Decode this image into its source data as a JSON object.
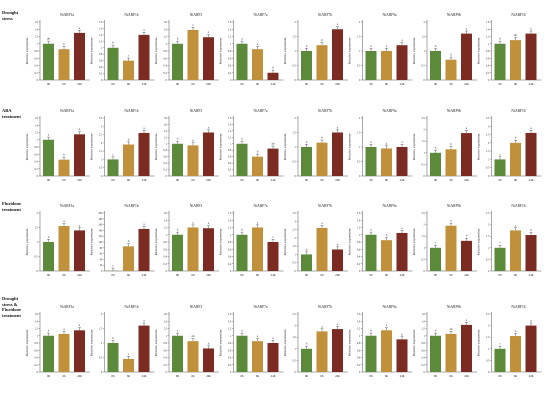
{
  "colors": {
    "0h": "#5a8a3a",
    "6h": "#c0913a",
    "24h": "#7b2b22",
    "axis": "#555555",
    "error_bar": "#333333"
  },
  "labels": {
    "ylabel": "Relative expression",
    "x_categories": [
      "0h",
      "6h",
      "24h"
    ]
  },
  "treatments": [
    {
      "title": "Drought\nstress"
    },
    {
      "title": "ABA\ntreatment"
    },
    {
      "title": "Fluridone\ntreatment"
    },
    {
      "title": "Drought\nstress &\nFluridone\ntreatment"
    }
  ],
  "chart_data": [
    {
      "type": "bar",
      "row": 0,
      "title": "NtARF1a",
      "categories": [
        "0h",
        "6h",
        "24h"
      ],
      "values": [
        1.0,
        0.85,
        1.3
      ],
      "letters": [
        "ab",
        "b",
        "a"
      ],
      "ylim": [
        0,
        1.6
      ],
      "yticks": [
        0,
        0.2,
        0.4,
        0.6,
        0.8,
        1.0,
        1.2,
        1.4,
        1.6
      ]
    },
    {
      "type": "bar",
      "row": 0,
      "title": "NtARF1b",
      "categories": [
        "0h",
        "6h",
        "24h"
      ],
      "values": [
        1.0,
        0.6,
        1.4
      ],
      "letters": [
        "b",
        "c",
        "a"
      ],
      "ylim": [
        0,
        1.8
      ],
      "yticks": [
        0,
        0.2,
        0.4,
        0.6,
        0.8,
        1.0,
        1.2,
        1.4,
        1.6,
        1.8
      ]
    },
    {
      "type": "bar",
      "row": 0,
      "title": "NtARF3",
      "categories": [
        "0h",
        "6h",
        "24h"
      ],
      "values": [
        1.0,
        1.38,
        1.18
      ],
      "letters": [
        "b",
        "a",
        "a"
      ],
      "ylim": [
        0,
        1.6
      ],
      "yticks": [
        0,
        0.2,
        0.4,
        0.6,
        0.8,
        1.0,
        1.2,
        1.4,
        1.6
      ]
    },
    {
      "type": "bar",
      "row": 0,
      "title": "NtARF7a",
      "categories": [
        "0h",
        "6h",
        "24h"
      ],
      "values": [
        1.0,
        0.85,
        0.2
      ],
      "letters": [
        "a",
        "a",
        "b"
      ],
      "ylim": [
        0,
        1.6
      ],
      "yticks": [
        0,
        0.2,
        0.4,
        0.6,
        0.8,
        1.0,
        1.2,
        1.4,
        1.6
      ]
    },
    {
      "type": "bar",
      "row": 0,
      "title": "NtARF7b",
      "categories": [
        "0h",
        "6h",
        "24h"
      ],
      "values": [
        1.0,
        1.2,
        1.75
      ],
      "letters": [
        "b",
        "b",
        "a"
      ],
      "ylim": [
        0,
        2.0
      ],
      "yticks": [
        0,
        0.5,
        1.0,
        1.5,
        2.0
      ]
    },
    {
      "type": "bar",
      "row": 0,
      "title": "NtARF9a",
      "categories": [
        "0h",
        "6h",
        "24h"
      ],
      "values": [
        1.0,
        1.0,
        1.2
      ],
      "letters": [
        "a",
        "a",
        "a"
      ],
      "ylim": [
        0,
        2.0
      ],
      "yticks": [
        0,
        0.5,
        1.0,
        1.5,
        2.0
      ]
    },
    {
      "type": "bar",
      "row": 0,
      "title": "NtARF9b",
      "categories": [
        "0h",
        "6h",
        "24h"
      ],
      "values": [
        1.0,
        0.7,
        1.6
      ],
      "letters": [
        "b",
        "b",
        "a"
      ],
      "ylim": [
        0,
        2.0
      ],
      "yticks": [
        0,
        0.5,
        1.0,
        1.5,
        2.0
      ]
    },
    {
      "type": "bar",
      "row": 0,
      "title": "NtARF16",
      "categories": [
        "0h",
        "6h",
        "24h"
      ],
      "values": [
        1.0,
        1.1,
        1.28
      ],
      "letters": [
        "b",
        "ab",
        "a"
      ],
      "ylim": [
        0,
        1.6
      ],
      "yticks": [
        0,
        0.2,
        0.4,
        0.6,
        0.8,
        1.0,
        1.2,
        1.4,
        1.6
      ]
    },
    {
      "type": "bar",
      "row": 1,
      "title": "NtARF1a",
      "categories": [
        "0h",
        "6h",
        "24h"
      ],
      "values": [
        1.0,
        0.45,
        1.15
      ],
      "letters": [
        "a",
        "b",
        "a"
      ],
      "ylim": [
        0,
        1.6
      ],
      "yticks": [
        0,
        0.2,
        0.4,
        0.6,
        0.8,
        1.0,
        1.2,
        1.4,
        1.6
      ]
    },
    {
      "type": "bar",
      "row": 1,
      "title": "NtARF1b",
      "categories": [
        "0h",
        "6h",
        "24h"
      ],
      "values": [
        1.0,
        1.9,
        2.6
      ],
      "letters": [
        "c",
        "b",
        "a"
      ],
      "ylim": [
        0,
        3.5
      ],
      "yticks": [
        0,
        0.5,
        1.0,
        1.5,
        2.0,
        2.5,
        3.0,
        3.5
      ]
    },
    {
      "type": "bar",
      "row": 1,
      "title": "NtARF3",
      "categories": [
        "0h",
        "6h",
        "24h"
      ],
      "values": [
        1.0,
        0.95,
        1.35
      ],
      "letters": [
        "b",
        "b",
        "a"
      ],
      "ylim": [
        0,
        1.8
      ],
      "yticks": [
        0,
        0.2,
        0.4,
        0.6,
        0.8,
        1.0,
        1.2,
        1.4,
        1.6,
        1.8
      ]
    },
    {
      "type": "bar",
      "row": 1,
      "title": "NtARF7a",
      "categories": [
        "0h",
        "6h",
        "24h"
      ],
      "values": [
        1.0,
        0.6,
        0.85
      ],
      "letters": [
        "a",
        "b",
        "ab"
      ],
      "ylim": [
        0,
        1.8
      ],
      "yticks": [
        0,
        0.2,
        0.4,
        0.6,
        0.8,
        1.0,
        1.2,
        1.4,
        1.6,
        1.8
      ]
    },
    {
      "type": "bar",
      "row": 1,
      "title": "NtARF7b",
      "categories": [
        "0h",
        "6h",
        "24h"
      ],
      "values": [
        1.0,
        1.15,
        1.5
      ],
      "letters": [
        "b",
        "b",
        "a"
      ],
      "ylim": [
        0,
        2.0
      ],
      "yticks": [
        0,
        0.5,
        1.0,
        1.5,
        2.0
      ]
    },
    {
      "type": "bar",
      "row": 1,
      "title": "NtARF9a",
      "categories": [
        "0h",
        "6h",
        "24h"
      ],
      "values": [
        1.0,
        0.95,
        1.0
      ],
      "letters": [
        "a",
        "a",
        "a"
      ],
      "ylim": [
        0,
        2.0
      ],
      "yticks": [
        0,
        0.5,
        1.0,
        1.5,
        2.0
      ]
    },
    {
      "type": "bar",
      "row": 1,
      "title": "NtARF9b",
      "categories": [
        "0h",
        "6h",
        "24h"
      ],
      "values": [
        1.0,
        1.15,
        1.85
      ],
      "letters": [
        "b",
        "b",
        "a"
      ],
      "ylim": [
        0,
        2.5
      ],
      "yticks": [
        0,
        0.5,
        1.0,
        1.5,
        2.0,
        2.5
      ]
    },
    {
      "type": "bar",
      "row": 1,
      "title": "NtARF16",
      "categories": [
        "0h",
        "6h",
        "24h"
      ],
      "values": [
        1.0,
        2.0,
        2.6
      ],
      "letters": [
        "c",
        "b",
        "a"
      ],
      "ylim": [
        0,
        3.5
      ],
      "yticks": [
        0,
        0.5,
        1.0,
        1.5,
        2.0,
        2.5,
        3.0,
        3.5
      ]
    },
    {
      "type": "bar",
      "row": 2,
      "title": "NtARF1a",
      "categories": [
        "0h",
        "6h",
        "24h"
      ],
      "values": [
        1.0,
        1.55,
        1.4
      ],
      "letters": [
        "b",
        "a",
        "a"
      ],
      "ylim": [
        0,
        2.0
      ],
      "yticks": [
        0,
        0.5,
        1.0,
        1.5,
        2.0
      ]
    },
    {
      "type": "bar",
      "row": 2,
      "title": "NtARF1b",
      "categories": [
        "0h",
        "6h",
        "24h"
      ],
      "values": [
        1.0,
        85,
        145
      ],
      "letters": [
        "c",
        "b",
        "a"
      ],
      "ylim": [
        0,
        200
      ],
      "yticks": [
        0,
        20,
        40,
        60,
        80,
        100,
        120,
        140,
        160,
        180,
        200
      ]
    },
    {
      "type": "bar",
      "row": 2,
      "title": "NtARF3",
      "categories": [
        "0h",
        "6h",
        "24h"
      ],
      "values": [
        1.0,
        1.2,
        1.18
      ],
      "letters": [
        "b",
        "a",
        "a"
      ],
      "ylim": [
        0,
        1.6
      ],
      "yticks": [
        0,
        0.2,
        0.4,
        0.6,
        0.8,
        1.0,
        1.2,
        1.4,
        1.6
      ]
    },
    {
      "type": "bar",
      "row": 2,
      "title": "NtARF7a",
      "categories": [
        "0h",
        "6h",
        "24h"
      ],
      "values": [
        1.0,
        1.2,
        0.8
      ],
      "letters": [
        "b",
        "a",
        "c"
      ],
      "ylim": [
        0,
        1.6
      ],
      "yticks": [
        0,
        0.2,
        0.4,
        0.6,
        0.8,
        1.0,
        1.2,
        1.4,
        1.6
      ]
    },
    {
      "type": "bar",
      "row": 2,
      "title": "NtARF7b",
      "categories": [
        "0h",
        "6h",
        "24h"
      ],
      "values": [
        1.0,
        2.6,
        1.3
      ],
      "letters": [
        "b",
        "a",
        "b"
      ],
      "ylim": [
        0,
        3.5
      ],
      "yticks": [
        0,
        0.5,
        1.0,
        1.5,
        2.0,
        2.5,
        3.0,
        3.5
      ]
    },
    {
      "type": "bar",
      "row": 2,
      "title": "NtARF9a",
      "categories": [
        "0h",
        "6h",
        "24h"
      ],
      "values": [
        1.0,
        0.85,
        1.05
      ],
      "letters": [
        "a",
        "b",
        "a"
      ],
      "ylim": [
        0,
        1.6
      ],
      "yticks": [
        0,
        0.2,
        0.4,
        0.6,
        0.8,
        1.0,
        1.2,
        1.4,
        1.6
      ]
    },
    {
      "type": "bar",
      "row": 2,
      "title": "NtARF9b",
      "categories": [
        "0h",
        "6h",
        "24h"
      ],
      "values": [
        1.0,
        1.95,
        1.3
      ],
      "letters": [
        "c",
        "a",
        "b"
      ],
      "ylim": [
        0,
        2.5
      ],
      "yticks": [
        0,
        0.5,
        1.0,
        1.5,
        2.0,
        2.5
      ]
    },
    {
      "type": "bar",
      "row": 2,
      "title": "NtARF16",
      "categories": [
        "0h",
        "6h",
        "24h"
      ],
      "values": [
        1.0,
        1.75,
        1.55
      ],
      "letters": [
        "c",
        "a",
        "b"
      ],
      "ylim": [
        0,
        2.5
      ],
      "yticks": [
        0,
        0.5,
        1.0,
        1.5,
        2.0,
        2.5
      ]
    },
    {
      "type": "bar",
      "row": 3,
      "title": "NtARF1a",
      "categories": [
        "0h",
        "6h",
        "24h"
      ],
      "values": [
        1.0,
        1.05,
        1.15
      ],
      "letters": [
        "a",
        "a",
        "a"
      ],
      "ylim": [
        0,
        1.6
      ],
      "yticks": [
        0,
        0.2,
        0.4,
        0.6,
        0.8,
        1.0,
        1.2,
        1.4,
        1.6
      ]
    },
    {
      "type": "bar",
      "row": 3,
      "title": "NtARF1b",
      "categories": [
        "0h",
        "6h",
        "24h"
      ],
      "values": [
        1.0,
        0.45,
        1.6
      ],
      "letters": [
        "b",
        "c",
        "a"
      ],
      "ylim": [
        0,
        2.0
      ],
      "yticks": [
        0,
        0.5,
        1.0,
        1.5,
        2.0
      ]
    },
    {
      "type": "bar",
      "row": 3,
      "title": "NtARF3",
      "categories": [
        "0h",
        "6h",
        "24h"
      ],
      "values": [
        1.0,
        0.85,
        0.65
      ],
      "letters": [
        "a",
        "ab",
        "b"
      ],
      "ylim": [
        0,
        1.6
      ],
      "yticks": [
        0,
        0.2,
        0.4,
        0.6,
        0.8,
        1.0,
        1.2,
        1.4,
        1.6
      ]
    },
    {
      "type": "bar",
      "row": 3,
      "title": "NtARF7a",
      "categories": [
        "0h",
        "6h",
        "24h"
      ],
      "values": [
        1.0,
        0.85,
        0.8
      ],
      "letters": [
        "a",
        "a",
        "a"
      ],
      "ylim": [
        0,
        1.6
      ],
      "yticks": [
        0,
        0.2,
        0.4,
        0.6,
        0.8,
        1.0,
        1.2,
        1.4,
        1.6
      ]
    },
    {
      "type": "bar",
      "row": 3,
      "title": "NtARF7b",
      "categories": [
        "0h",
        "6h",
        "24h"
      ],
      "values": [
        1.0,
        1.75,
        1.85
      ],
      "letters": [
        "b",
        "a",
        "a"
      ],
      "ylim": [
        0,
        2.5
      ],
      "yticks": [
        0,
        0.5,
        1.0,
        1.5,
        2.0,
        2.5
      ]
    },
    {
      "type": "bar",
      "row": 3,
      "title": "NtARF9a",
      "categories": [
        "0h",
        "6h",
        "24h"
      ],
      "values": [
        1.0,
        1.15,
        0.9
      ],
      "letters": [
        "b",
        "a",
        "b"
      ],
      "ylim": [
        0,
        1.6
      ],
      "yticks": [
        0,
        0.2,
        0.4,
        0.6,
        0.8,
        1.0,
        1.2,
        1.4,
        1.6
      ]
    },
    {
      "type": "bar",
      "row": 3,
      "title": "NtARF9b",
      "categories": [
        "0h",
        "6h",
        "24h"
      ],
      "values": [
        1.0,
        1.05,
        1.3
      ],
      "letters": [
        "b",
        "ab",
        "a"
      ],
      "ylim": [
        0,
        1.6
      ],
      "yticks": [
        0,
        0.2,
        0.4,
        0.6,
        0.8,
        1.0,
        1.2,
        1.4,
        1.6
      ]
    },
    {
      "type": "bar",
      "row": 3,
      "title": "NtARF16",
      "categories": [
        "0h",
        "6h",
        "24h"
      ],
      "values": [
        1.0,
        1.55,
        2.0
      ],
      "letters": [
        "c",
        "b",
        "a"
      ],
      "ylim": [
        0,
        2.5
      ],
      "yticks": [
        0,
        0.5,
        1.0,
        1.5,
        2.0,
        2.5
      ]
    }
  ]
}
